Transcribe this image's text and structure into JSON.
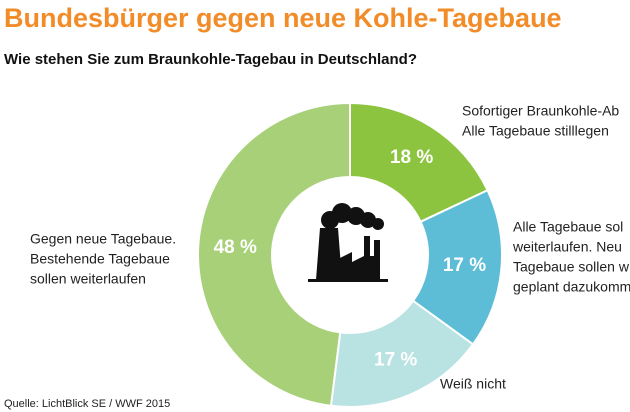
{
  "chart_data": {
    "type": "pie",
    "title": "Bundesbürger gegen neue Kohle-Tagebaue",
    "subtitle": "Wie stehen Sie zum Braunkohle-Tagebau in Deutschland?",
    "categories": [
      [
        "Sofortiger Braunkohle-Ab",
        "Alle Tagebaue stilllegen"
      ],
      [
        "Alle Tagebaue sol",
        "weiterlaufen. Neu",
        "Tagebaue sollen w",
        "geplant dazukomm"
      ],
      [
        "Weiß nicht"
      ],
      [
        "Gegen neue Tagebaue.",
        "Bestehende Tagebaue",
        "sollen weiterlaufen"
      ]
    ],
    "values": [
      18,
      17,
      17,
      48
    ],
    "value_labels": [
      "18 %",
      "17 %",
      "17 %",
      "48 %"
    ],
    "colors": [
      "#8cc43f",
      "#5dbcd6",
      "#b9e2e3",
      "#a8d079"
    ],
    "source": "Quelle: LichtBlick SE / WWF 2015"
  }
}
